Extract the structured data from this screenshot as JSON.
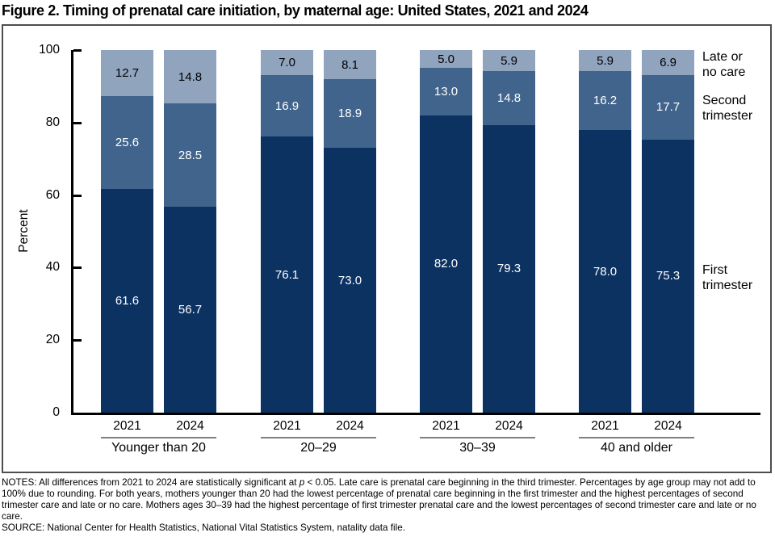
{
  "title": "Figure 2. Timing of prenatal care initiation, by maternal age: United States, 2021 and 2024",
  "y_axis": {
    "label": "Percent"
  },
  "legend": {
    "late": "Late or\nno care",
    "second": "Second\ntrimester",
    "first": "First\ntrimester"
  },
  "notes": {
    "prefix": "NOTES: All differences from 2021 to 2024 are statistically significant at ",
    "italic_p": "p",
    "suffix": " < 0.05. Late care is prenatal care beginning in the third trimester. Percentages by age group may not add to 100% due to rounding. For both years, mothers younger than 20 had the lowest percentage of prenatal care beginning in the first trimester and the highest percentages of second trimester care and late or no care. Mothers ages 30–39 had the highest percentage of first trimester prenatal care and the lowest percentages of second trimester care and late or no care.",
    "source": "SOURCE: National Center for Health Statistics, National Vital Statistics System, natality data file."
  },
  "chart_data": {
    "type": "bar",
    "stacked": true,
    "title": "Figure 2. Timing of prenatal care initiation, by maternal age: United States, 2021 and 2024",
    "ylabel": "Percent",
    "ylim": [
      0,
      100
    ],
    "yticks": [
      0,
      20,
      40,
      60,
      80,
      100
    ],
    "grid": false,
    "legend_position": "right",
    "years": [
      "2021",
      "2024"
    ],
    "categories": [
      "Younger than 20",
      "20–29",
      "30–39",
      "40 and older"
    ],
    "segments_top_to_bottom": [
      {
        "key": "late",
        "name": "Late or no care",
        "color": "#91A4BE",
        "label_color": "#000000"
      },
      {
        "key": "second",
        "name": "Second trimester",
        "color": "#41648C",
        "label_color": "#ffffff"
      },
      {
        "key": "first",
        "name": "First trimester",
        "color": "#0C3262",
        "label_color": "#ffffff"
      }
    ],
    "groups": [
      {
        "label": "Younger than 20",
        "bars": [
          {
            "year": "2021",
            "values": {
              "first": 61.6,
              "second": 25.6,
              "late": 12.7
            }
          },
          {
            "year": "2024",
            "values": {
              "first": 56.7,
              "second": 28.5,
              "late": 14.8
            }
          }
        ]
      },
      {
        "label": "20–29",
        "bars": [
          {
            "year": "2021",
            "values": {
              "first": 76.1,
              "second": 16.9,
              "late": 7.0
            }
          },
          {
            "year": "2024",
            "values": {
              "first": 73.0,
              "second": 18.9,
              "late": 8.1
            }
          }
        ]
      },
      {
        "label": "30–39",
        "bars": [
          {
            "year": "2021",
            "values": {
              "first": 82.0,
              "second": 13.0,
              "late": 5.0
            }
          },
          {
            "year": "2024",
            "values": {
              "first": 79.3,
              "second": 14.8,
              "late": 5.9
            }
          }
        ]
      },
      {
        "label": "40 and older",
        "bars": [
          {
            "year": "2021",
            "values": {
              "first": 78.0,
              "second": 16.2,
              "late": 5.9
            }
          },
          {
            "year": "2024",
            "values": {
              "first": 75.3,
              "second": 17.7,
              "late": 6.9
            }
          }
        ]
      }
    ]
  }
}
